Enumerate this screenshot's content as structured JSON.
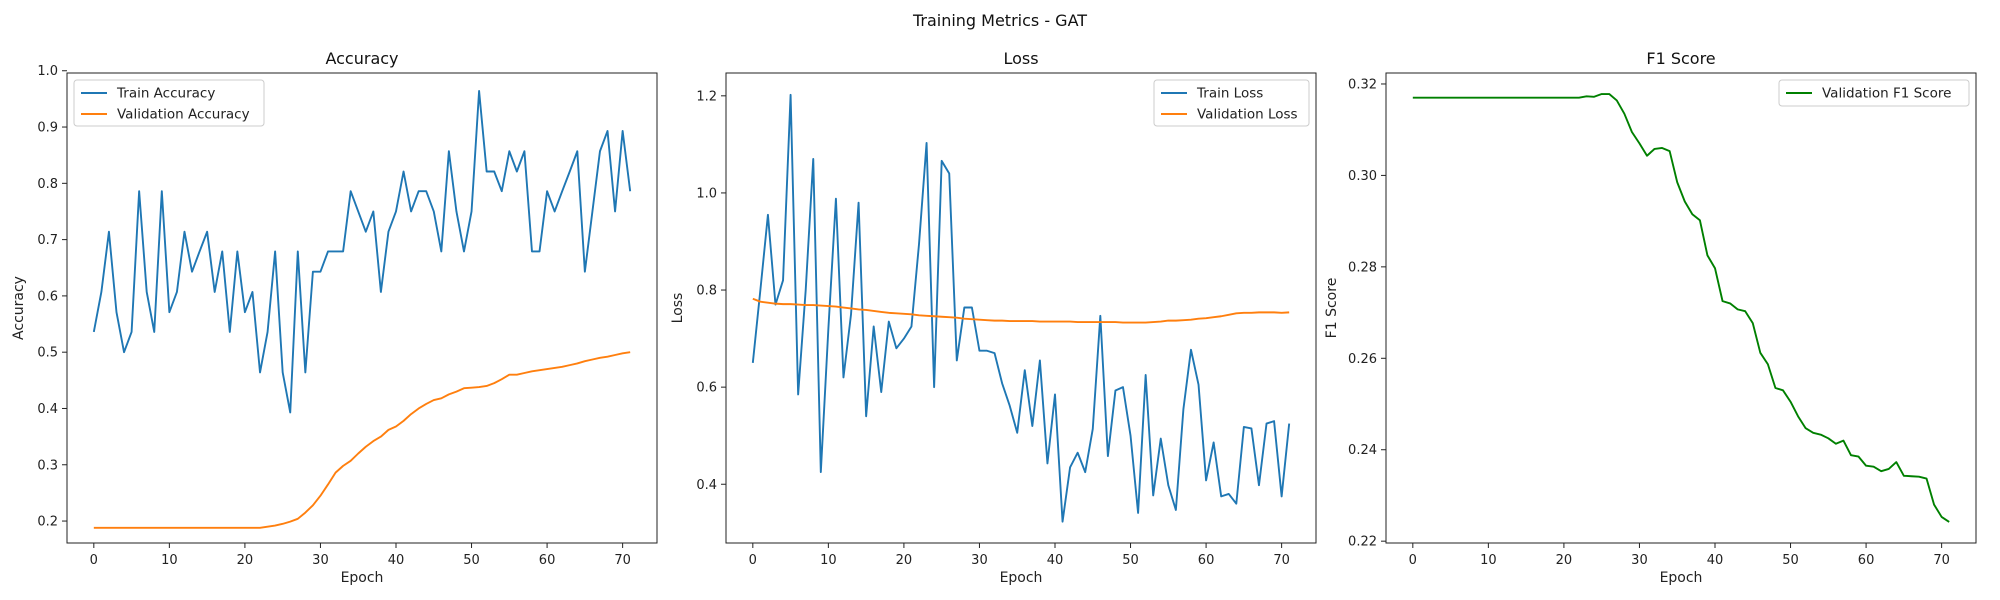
{
  "figure_title": "Training Metrics - GAT",
  "colors": {
    "blue": "#1f77b4",
    "orange": "#ff7f0e",
    "green": "#008000"
  },
  "chart_data": [
    {
      "type": "line",
      "title": "Accuracy",
      "xlabel": "Epoch",
      "ylabel": "Accuracy",
      "xlim": [
        -3.55,
        74.55
      ],
      "ylim": [
        0.161,
        0.996
      ],
      "xticks": [
        0,
        10,
        20,
        30,
        40,
        50,
        60,
        70
      ],
      "yticks": [
        0.2,
        0.3,
        0.4,
        0.5,
        0.6,
        0.7,
        0.8,
        0.9,
        1.0
      ],
      "ytick_labels": [
        "0.2",
        "0.3",
        "0.4",
        "0.5",
        "0.6",
        "0.7",
        "0.8",
        "0.9",
        "1.0"
      ],
      "legend_position": "upper-left",
      "series": [
        {
          "name": "Train Accuracy",
          "color": "#1f77b4",
          "values": [
            0.536,
            0.607,
            0.714,
            0.571,
            0.5,
            0.536,
            0.786,
            0.607,
            0.536,
            0.786,
            0.571,
            0.607,
            0.714,
            0.643,
            0.679,
            0.714,
            0.607,
            0.679,
            0.536,
            0.679,
            0.571,
            0.607,
            0.464,
            0.536,
            0.679,
            0.464,
            0.393,
            0.679,
            0.464,
            0.643,
            0.643,
            0.679,
            0.679,
            0.679,
            0.786,
            0.75,
            0.714,
            0.75,
            0.607,
            0.714,
            0.75,
            0.821,
            0.75,
            0.786,
            0.786,
            0.75,
            0.679,
            0.857,
            0.75,
            0.679,
            0.75,
            0.964,
            0.821,
            0.821,
            0.786,
            0.857,
            0.821,
            0.857,
            0.679,
            0.679,
            0.786,
            0.75,
            0.786,
            0.821,
            0.857,
            0.643,
            0.75,
            0.857,
            0.893,
            0.75,
            0.893,
            0.786
          ]
        },
        {
          "name": "Validation Accuracy",
          "color": "#ff7f0e",
          "values": [
            0.188,
            0.188,
            0.188,
            0.188,
            0.188,
            0.188,
            0.188,
            0.188,
            0.188,
            0.188,
            0.188,
            0.188,
            0.188,
            0.188,
            0.188,
            0.188,
            0.188,
            0.188,
            0.188,
            0.188,
            0.188,
            0.188,
            0.188,
            0.19,
            0.192,
            0.195,
            0.199,
            0.204,
            0.215,
            0.228,
            0.245,
            0.265,
            0.286,
            0.298,
            0.307,
            0.32,
            0.332,
            0.342,
            0.35,
            0.362,
            0.368,
            0.378,
            0.39,
            0.4,
            0.408,
            0.415,
            0.418,
            0.425,
            0.43,
            0.436,
            0.437,
            0.438,
            0.44,
            0.445,
            0.452,
            0.46,
            0.46,
            0.463,
            0.466,
            0.468,
            0.47,
            0.472,
            0.474,
            0.477,
            0.48,
            0.484,
            0.487,
            0.49,
            0.492,
            0.495,
            0.498,
            0.5
          ]
        }
      ]
    },
    {
      "type": "line",
      "title": "Loss",
      "xlabel": "Epoch",
      "ylabel": "Loss",
      "xlim": [
        -3.55,
        74.55
      ],
      "ylim": [
        0.279,
        1.247
      ],
      "xticks": [
        0,
        10,
        20,
        30,
        40,
        50,
        60,
        70
      ],
      "yticks": [
        0.4,
        0.6,
        0.8,
        1.0,
        1.2
      ],
      "ytick_labels": [
        "0.4",
        "0.6",
        "0.8",
        "1.0",
        "1.2"
      ],
      "legend_position": "upper-right",
      "series": [
        {
          "name": "Train Loss",
          "color": "#1f77b4",
          "values": [
            0.65,
            0.8,
            0.955,
            0.77,
            0.82,
            1.202,
            0.585,
            0.8,
            1.07,
            0.425,
            0.72,
            0.988,
            0.62,
            0.75,
            0.98,
            0.54,
            0.725,
            0.59,
            0.735,
            0.68,
            0.7,
            0.725,
            0.895,
            1.103,
            0.6,
            1.066,
            1.04,
            0.655,
            0.764,
            0.764,
            0.675,
            0.675,
            0.67,
            0.608,
            0.562,
            0.506,
            0.635,
            0.52,
            0.655,
            0.443,
            0.585,
            0.323,
            0.435,
            0.465,
            0.425,
            0.514,
            0.747,
            0.458,
            0.593,
            0.6,
            0.5,
            0.341,
            0.625,
            0.377,
            0.494,
            0.398,
            0.347,
            0.555,
            0.677,
            0.605,
            0.408,
            0.486,
            0.375,
            0.38,
            0.36,
            0.518,
            0.515,
            0.398,
            0.525,
            0.53,
            0.375,
            0.525
          ]
        },
        {
          "name": "Validation Loss",
          "color": "#ff7f0e",
          "values": [
            0.782,
            0.776,
            0.774,
            0.772,
            0.771,
            0.771,
            0.77,
            0.769,
            0.769,
            0.768,
            0.767,
            0.766,
            0.764,
            0.762,
            0.76,
            0.759,
            0.757,
            0.755,
            0.753,
            0.752,
            0.751,
            0.75,
            0.748,
            0.747,
            0.746,
            0.745,
            0.744,
            0.743,
            0.741,
            0.74,
            0.739,
            0.738,
            0.737,
            0.737,
            0.736,
            0.736,
            0.736,
            0.736,
            0.735,
            0.735,
            0.735,
            0.735,
            0.735,
            0.734,
            0.734,
            0.734,
            0.734,
            0.734,
            0.734,
            0.733,
            0.733,
            0.733,
            0.733,
            0.734,
            0.735,
            0.737,
            0.737,
            0.738,
            0.739,
            0.741,
            0.742,
            0.744,
            0.746,
            0.749,
            0.752,
            0.753,
            0.753,
            0.754,
            0.754,
            0.754,
            0.753,
            0.754
          ]
        }
      ]
    },
    {
      "type": "line",
      "title": "F1 Score",
      "xlabel": "Epoch",
      "ylabel": "F1 Score",
      "xlim": [
        -3.55,
        74.55
      ],
      "ylim": [
        0.2196,
        0.3224
      ],
      "xticks": [
        0,
        10,
        20,
        30,
        40,
        50,
        60,
        70
      ],
      "yticks": [
        0.22,
        0.24,
        0.26,
        0.28,
        0.3,
        0.32
      ],
      "ytick_labels": [
        "0.22",
        "0.24",
        "0.26",
        "0.28",
        "0.30",
        "0.32"
      ],
      "legend_position": "upper-right",
      "series": [
        {
          "name": "Validation F1 Score",
          "color": "#008000",
          "values": [
            0.317,
            0.317,
            0.317,
            0.317,
            0.317,
            0.317,
            0.317,
            0.317,
            0.317,
            0.317,
            0.317,
            0.317,
            0.317,
            0.317,
            0.317,
            0.317,
            0.317,
            0.317,
            0.317,
            0.317,
            0.317,
            0.317,
            0.317,
            0.3173,
            0.3172,
            0.3178,
            0.3178,
            0.3164,
            0.3135,
            0.3095,
            0.307,
            0.3043,
            0.3058,
            0.306,
            0.3053,
            0.2985,
            0.2943,
            0.2915,
            0.2902,
            0.2825,
            0.2797,
            0.2725,
            0.272,
            0.2707,
            0.2703,
            0.2677,
            0.2612,
            0.2587,
            0.2535,
            0.253,
            0.2505,
            0.2473,
            0.2447,
            0.2437,
            0.2433,
            0.2425,
            0.2413,
            0.242,
            0.2388,
            0.2385,
            0.2365,
            0.2363,
            0.2353,
            0.2358,
            0.2373,
            0.2343,
            0.2342,
            0.2341,
            0.2337,
            0.228,
            0.2253,
            0.2242
          ]
        }
      ]
    }
  ]
}
